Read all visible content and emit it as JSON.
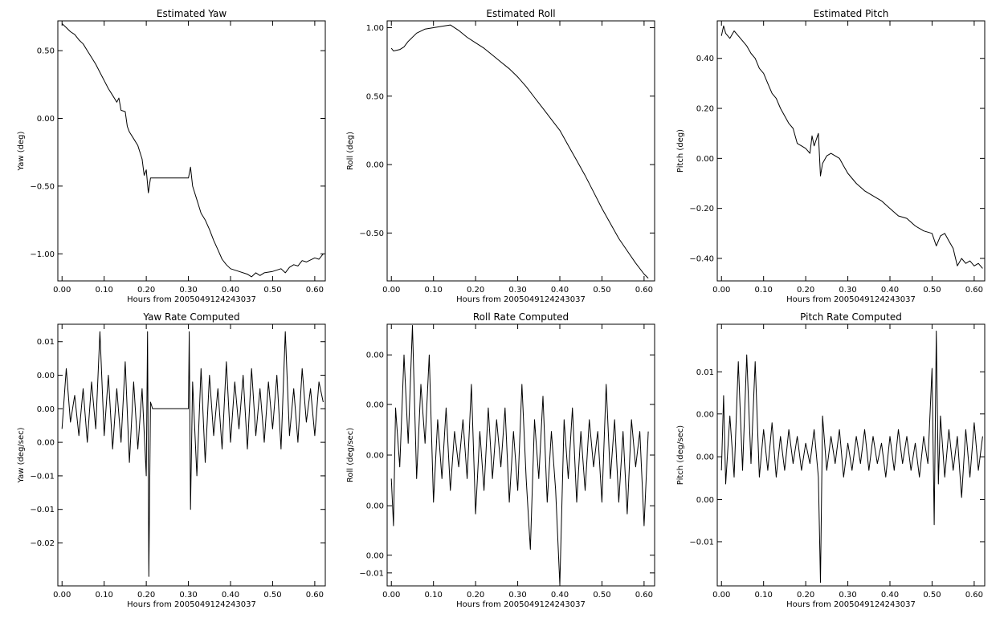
{
  "chart_data": [
    {
      "type": "line",
      "title": "Estimated Yaw",
      "xlabel": "Hours from 2005049124243037",
      "ylabel": "Yaw (deg)",
      "xlim": [
        -0.01,
        0.625
      ],
      "ylim": [
        -1.2,
        0.72
      ],
      "xticks": [
        0.0,
        0.1,
        0.2,
        0.3,
        0.4,
        0.5,
        0.6
      ],
      "xtick_labels": [
        "0.00",
        "0.10",
        "0.20",
        "0.30",
        "0.40",
        "0.50",
        "0.60"
      ],
      "yticks": [
        0.5,
        0.0,
        -0.5,
        -1.0
      ],
      "ytick_labels": [
        "0.50",
        "0.00",
        "−0.50",
        "−1.00"
      ],
      "series": [
        {
          "x": [
            0.0,
            0.01,
            0.02,
            0.03,
            0.04,
            0.05,
            0.06,
            0.07,
            0.08,
            0.09,
            0.1,
            0.11,
            0.12,
            0.13,
            0.135,
            0.14,
            0.15,
            0.155,
            0.16,
            0.17,
            0.18,
            0.19,
            0.195,
            0.2,
            0.205,
            0.21,
            0.22,
            0.25,
            0.28,
            0.29,
            0.3,
            0.305,
            0.31,
            0.32,
            0.33,
            0.34,
            0.35,
            0.36,
            0.37,
            0.38,
            0.39,
            0.4,
            0.42,
            0.44,
            0.45,
            0.46,
            0.47,
            0.48,
            0.5,
            0.52,
            0.53,
            0.54,
            0.55,
            0.56,
            0.57,
            0.58,
            0.6,
            0.61,
            0.62
          ],
          "values": [
            0.7,
            0.67,
            0.64,
            0.62,
            0.58,
            0.55,
            0.5,
            0.45,
            0.4,
            0.34,
            0.28,
            0.22,
            0.17,
            0.12,
            0.15,
            0.06,
            0.05,
            -0.06,
            -0.1,
            -0.15,
            -0.2,
            -0.3,
            -0.42,
            -0.38,
            -0.55,
            -0.44,
            -0.44,
            -0.44,
            -0.44,
            -0.44,
            -0.44,
            -0.36,
            -0.5,
            -0.6,
            -0.7,
            -0.75,
            -0.82,
            -0.9,
            -0.97,
            -1.04,
            -1.08,
            -1.11,
            -1.13,
            -1.15,
            -1.17,
            -1.14,
            -1.16,
            -1.14,
            -1.13,
            -1.11,
            -1.14,
            -1.1,
            -1.08,
            -1.09,
            -1.05,
            -1.06,
            -1.03,
            -1.04,
            -1.0
          ]
        }
      ]
    },
    {
      "type": "line",
      "title": "Estimated Roll",
      "xlabel": "Hours from 2005049124243037",
      "ylabel": "Roll (deg)",
      "xlim": [
        -0.01,
        0.625
      ],
      "ylim": [
        -0.85,
        1.05
      ],
      "xticks": [
        0.0,
        0.1,
        0.2,
        0.3,
        0.4,
        0.5,
        0.6
      ],
      "xtick_labels": [
        "0.00",
        "0.10",
        "0.20",
        "0.30",
        "0.40",
        "0.50",
        "0.60"
      ],
      "yticks": [
        1.0,
        0.5,
        0.0,
        -0.5
      ],
      "ytick_labels": [
        "1.00",
        "0.50",
        "0.00",
        "−0.50"
      ],
      "series": [
        {
          "x": [
            0.0,
            0.005,
            0.02,
            0.03,
            0.04,
            0.06,
            0.08,
            0.1,
            0.12,
            0.14,
            0.16,
            0.18,
            0.2,
            0.22,
            0.24,
            0.26,
            0.28,
            0.3,
            0.32,
            0.34,
            0.36,
            0.38,
            0.4,
            0.42,
            0.44,
            0.46,
            0.48,
            0.5,
            0.52,
            0.54,
            0.56,
            0.58,
            0.6,
            0.61
          ],
          "values": [
            0.85,
            0.83,
            0.84,
            0.86,
            0.9,
            0.96,
            0.99,
            1.0,
            1.01,
            1.02,
            0.98,
            0.93,
            0.89,
            0.85,
            0.8,
            0.75,
            0.7,
            0.64,
            0.57,
            0.49,
            0.41,
            0.33,
            0.25,
            0.14,
            0.03,
            -0.08,
            -0.2,
            -0.32,
            -0.43,
            -0.54,
            -0.63,
            -0.72,
            -0.8,
            -0.83
          ]
        }
      ]
    },
    {
      "type": "line",
      "title": "Estimated Pitch",
      "xlabel": "Hours from 2005049124243037",
      "ylabel": "Pitch (deg)",
      "xlim": [
        -0.01,
        0.625
      ],
      "ylim": [
        -0.49,
        0.55
      ],
      "xticks": [
        0.0,
        0.1,
        0.2,
        0.3,
        0.4,
        0.5,
        0.6
      ],
      "xtick_labels": [
        "0.00",
        "0.10",
        "0.20",
        "0.30",
        "0.40",
        "0.50",
        "0.60"
      ],
      "yticks": [
        0.4,
        0.2,
        0.0,
        -0.2,
        -0.4
      ],
      "ytick_labels": [
        "0.40",
        "0.20",
        "0.00",
        "−0.20",
        "−0.40"
      ],
      "series": [
        {
          "x": [
            0.0,
            0.005,
            0.01,
            0.02,
            0.03,
            0.04,
            0.05,
            0.06,
            0.07,
            0.08,
            0.09,
            0.1,
            0.11,
            0.12,
            0.13,
            0.14,
            0.15,
            0.16,
            0.17,
            0.18,
            0.19,
            0.2,
            0.21,
            0.215,
            0.22,
            0.23,
            0.235,
            0.24,
            0.25,
            0.26,
            0.27,
            0.28,
            0.29,
            0.3,
            0.32,
            0.34,
            0.36,
            0.38,
            0.4,
            0.42,
            0.44,
            0.46,
            0.48,
            0.5,
            0.51,
            0.52,
            0.53,
            0.54,
            0.55,
            0.56,
            0.57,
            0.58,
            0.59,
            0.6,
            0.61,
            0.62
          ],
          "values": [
            0.49,
            0.53,
            0.5,
            0.48,
            0.51,
            0.49,
            0.47,
            0.45,
            0.42,
            0.4,
            0.36,
            0.34,
            0.3,
            0.26,
            0.24,
            0.2,
            0.17,
            0.14,
            0.12,
            0.06,
            0.05,
            0.04,
            0.02,
            0.09,
            0.05,
            0.1,
            -0.07,
            -0.02,
            0.01,
            0.02,
            0.01,
            0.0,
            -0.03,
            -0.06,
            -0.1,
            -0.13,
            -0.15,
            -0.17,
            -0.2,
            -0.23,
            -0.24,
            -0.27,
            -0.29,
            -0.3,
            -0.35,
            -0.31,
            -0.3,
            -0.33,
            -0.36,
            -0.43,
            -0.4,
            -0.42,
            -0.41,
            -0.43,
            -0.42,
            -0.44
          ]
        }
      ]
    },
    {
      "type": "line",
      "title": "Yaw Rate Computed",
      "xlabel": "Hours from 2005049124243037",
      "ylabel": "Yaw (deg/sec)",
      "xlim": [
        -0.01,
        0.625
      ],
      "ylim": [
        -0.0264,
        0.0126
      ],
      "xticks": [
        0.0,
        0.1,
        0.2,
        0.3,
        0.4,
        0.5,
        0.6
      ],
      "xtick_labels": [
        "0.00",
        "0.10",
        "0.20",
        "0.30",
        "0.40",
        "0.50",
        "0.60"
      ],
      "yticks": [
        0.01,
        0.005,
        0.0,
        -0.005,
        -0.01,
        -0.015,
        -0.02
      ],
      "ytick_labels": [
        "0.01",
        "0.00",
        "0.00",
        "0.00",
        "−0.01",
        "−0.01",
        "−0.02"
      ],
      "series": [
        {
          "x": [
            0.0,
            0.01,
            0.02,
            0.03,
            0.04,
            0.05,
            0.06,
            0.07,
            0.08,
            0.09,
            0.1,
            0.11,
            0.12,
            0.13,
            0.14,
            0.15,
            0.16,
            0.17,
            0.18,
            0.19,
            0.2,
            0.203,
            0.206,
            0.21,
            0.215,
            0.3,
            0.302,
            0.305,
            0.31,
            0.32,
            0.33,
            0.34,
            0.35,
            0.36,
            0.37,
            0.38,
            0.39,
            0.4,
            0.41,
            0.42,
            0.43,
            0.44,
            0.45,
            0.46,
            0.47,
            0.48,
            0.49,
            0.5,
            0.51,
            0.52,
            0.53,
            0.54,
            0.55,
            0.56,
            0.57,
            0.58,
            0.59,
            0.6,
            0.61,
            0.62
          ],
          "values": [
            -0.003,
            0.006,
            -0.002,
            0.002,
            -0.004,
            0.003,
            -0.005,
            0.004,
            -0.003,
            0.0115,
            -0.004,
            0.005,
            -0.006,
            0.003,
            -0.005,
            0.007,
            -0.008,
            0.004,
            -0.006,
            0.003,
            -0.01,
            0.0115,
            -0.025,
            0.001,
            0.0,
            0.0,
            0.0115,
            -0.015,
            0.004,
            -0.01,
            0.006,
            -0.008,
            0.005,
            -0.004,
            0.003,
            -0.006,
            0.007,
            -0.005,
            0.004,
            -0.003,
            0.005,
            -0.006,
            0.006,
            -0.004,
            0.003,
            -0.005,
            0.004,
            -0.003,
            0.005,
            -0.006,
            0.0115,
            -0.004,
            0.003,
            -0.005,
            0.006,
            -0.002,
            0.003,
            -0.004,
            0.004,
            0.001
          ]
        }
      ]
    },
    {
      "type": "line",
      "title": "Roll Rate Computed",
      "xlabel": "Hours from 2005049124243037",
      "ylabel": "Roll (deg/sec)",
      "xlim": [
        -0.01,
        0.625
      ],
      "ylim": [
        -0.0111,
        0.0111
      ],
      "xticks": [
        0.0,
        0.1,
        0.2,
        0.3,
        0.4,
        0.5,
        0.6
      ],
      "xtick_labels": [
        "0.00",
        "0.10",
        "0.20",
        "0.30",
        "0.40",
        "0.50",
        "0.60"
      ],
      "yticks": [
        0.0085,
        0.0043,
        0.0,
        -0.0043,
        -0.0085,
        -0.01
      ],
      "ytick_labels": [
        "0.00",
        "0.00",
        "0.00",
        "0.00",
        "0.00",
        "−0.01"
      ],
      "series": [
        {
          "x": [
            0.0,
            0.005,
            0.01,
            0.02,
            0.03,
            0.04,
            0.05,
            0.06,
            0.07,
            0.08,
            0.09,
            0.1,
            0.11,
            0.12,
            0.13,
            0.14,
            0.15,
            0.16,
            0.17,
            0.18,
            0.19,
            0.2,
            0.21,
            0.22,
            0.23,
            0.24,
            0.25,
            0.26,
            0.27,
            0.28,
            0.29,
            0.3,
            0.31,
            0.32,
            0.33,
            0.34,
            0.35,
            0.36,
            0.37,
            0.38,
            0.39,
            0.4,
            0.41,
            0.42,
            0.43,
            0.44,
            0.45,
            0.46,
            0.47,
            0.48,
            0.49,
            0.5,
            0.51,
            0.52,
            0.53,
            0.54,
            0.55,
            0.56,
            0.57,
            0.58,
            0.59,
            0.6,
            0.61
          ],
          "values": [
            -0.002,
            -0.006,
            0.004,
            -0.001,
            0.0085,
            0.001,
            0.011,
            -0.002,
            0.006,
            0.001,
            0.0085,
            -0.004,
            0.003,
            -0.002,
            0.004,
            -0.003,
            0.002,
            -0.001,
            0.003,
            -0.002,
            0.006,
            -0.005,
            0.002,
            -0.003,
            0.004,
            -0.002,
            0.003,
            -0.001,
            0.004,
            -0.004,
            0.002,
            -0.003,
            0.006,
            -0.002,
            -0.008,
            0.003,
            -0.002,
            0.005,
            -0.004,
            0.002,
            -0.003,
            -0.011,
            0.003,
            -0.002,
            0.004,
            -0.004,
            0.002,
            -0.003,
            0.003,
            -0.001,
            0.002,
            -0.004,
            0.006,
            -0.002,
            0.003,
            -0.004,
            0.002,
            -0.005,
            0.003,
            -0.001,
            0.002,
            -0.006,
            0.002
          ]
        }
      ]
    },
    {
      "type": "line",
      "title": "Pitch Rate Computed",
      "xlabel": "Hours from 2005049124243037",
      "ylabel": "Pitch (deg/sec)",
      "xlim": [
        -0.01,
        0.625
      ],
      "ylim": [
        -0.019,
        0.0195
      ],
      "xticks": [
        0.0,
        0.1,
        0.2,
        0.3,
        0.4,
        0.5,
        0.6
      ],
      "xtick_labels": [
        "0.00",
        "0.10",
        "0.20",
        "0.30",
        "0.40",
        "0.50",
        "0.60"
      ],
      "yticks": [
        0.0125,
        0.0063,
        0.0,
        -0.0063,
        -0.0125
      ],
      "ytick_labels": [
        "0.01",
        "0.00",
        "0.00",
        "0.00",
        "−0.01"
      ],
      "series": [
        {
          "x": [
            0.0,
            0.005,
            0.01,
            0.02,
            0.03,
            0.04,
            0.05,
            0.06,
            0.07,
            0.08,
            0.09,
            0.1,
            0.11,
            0.12,
            0.13,
            0.14,
            0.15,
            0.16,
            0.17,
            0.18,
            0.19,
            0.2,
            0.21,
            0.22,
            0.23,
            0.235,
            0.24,
            0.25,
            0.26,
            0.27,
            0.28,
            0.29,
            0.3,
            0.31,
            0.32,
            0.33,
            0.34,
            0.35,
            0.36,
            0.37,
            0.38,
            0.39,
            0.4,
            0.41,
            0.42,
            0.43,
            0.44,
            0.45,
            0.46,
            0.47,
            0.48,
            0.49,
            0.5,
            0.505,
            0.51,
            0.515,
            0.52,
            0.53,
            0.54,
            0.55,
            0.56,
            0.57,
            0.58,
            0.59,
            0.6,
            0.61,
            0.62
          ],
          "values": [
            -0.002,
            0.009,
            -0.004,
            0.006,
            -0.003,
            0.014,
            -0.002,
            0.015,
            -0.001,
            0.014,
            -0.003,
            0.004,
            -0.002,
            0.005,
            -0.003,
            0.003,
            -0.002,
            0.004,
            -0.001,
            0.003,
            -0.002,
            0.002,
            -0.001,
            0.004,
            -0.003,
            -0.0185,
            0.006,
            -0.002,
            0.003,
            -0.001,
            0.004,
            -0.003,
            0.002,
            -0.002,
            0.003,
            -0.001,
            0.004,
            -0.002,
            0.003,
            -0.001,
            0.002,
            -0.003,
            0.003,
            -0.002,
            0.004,
            -0.001,
            0.003,
            -0.002,
            0.002,
            -0.003,
            0.003,
            -0.001,
            0.013,
            -0.01,
            0.0185,
            -0.004,
            0.006,
            -0.003,
            0.004,
            -0.002,
            0.003,
            -0.006,
            0.004,
            -0.003,
            0.005,
            -0.002,
            0.003
          ]
        }
      ]
    }
  ]
}
